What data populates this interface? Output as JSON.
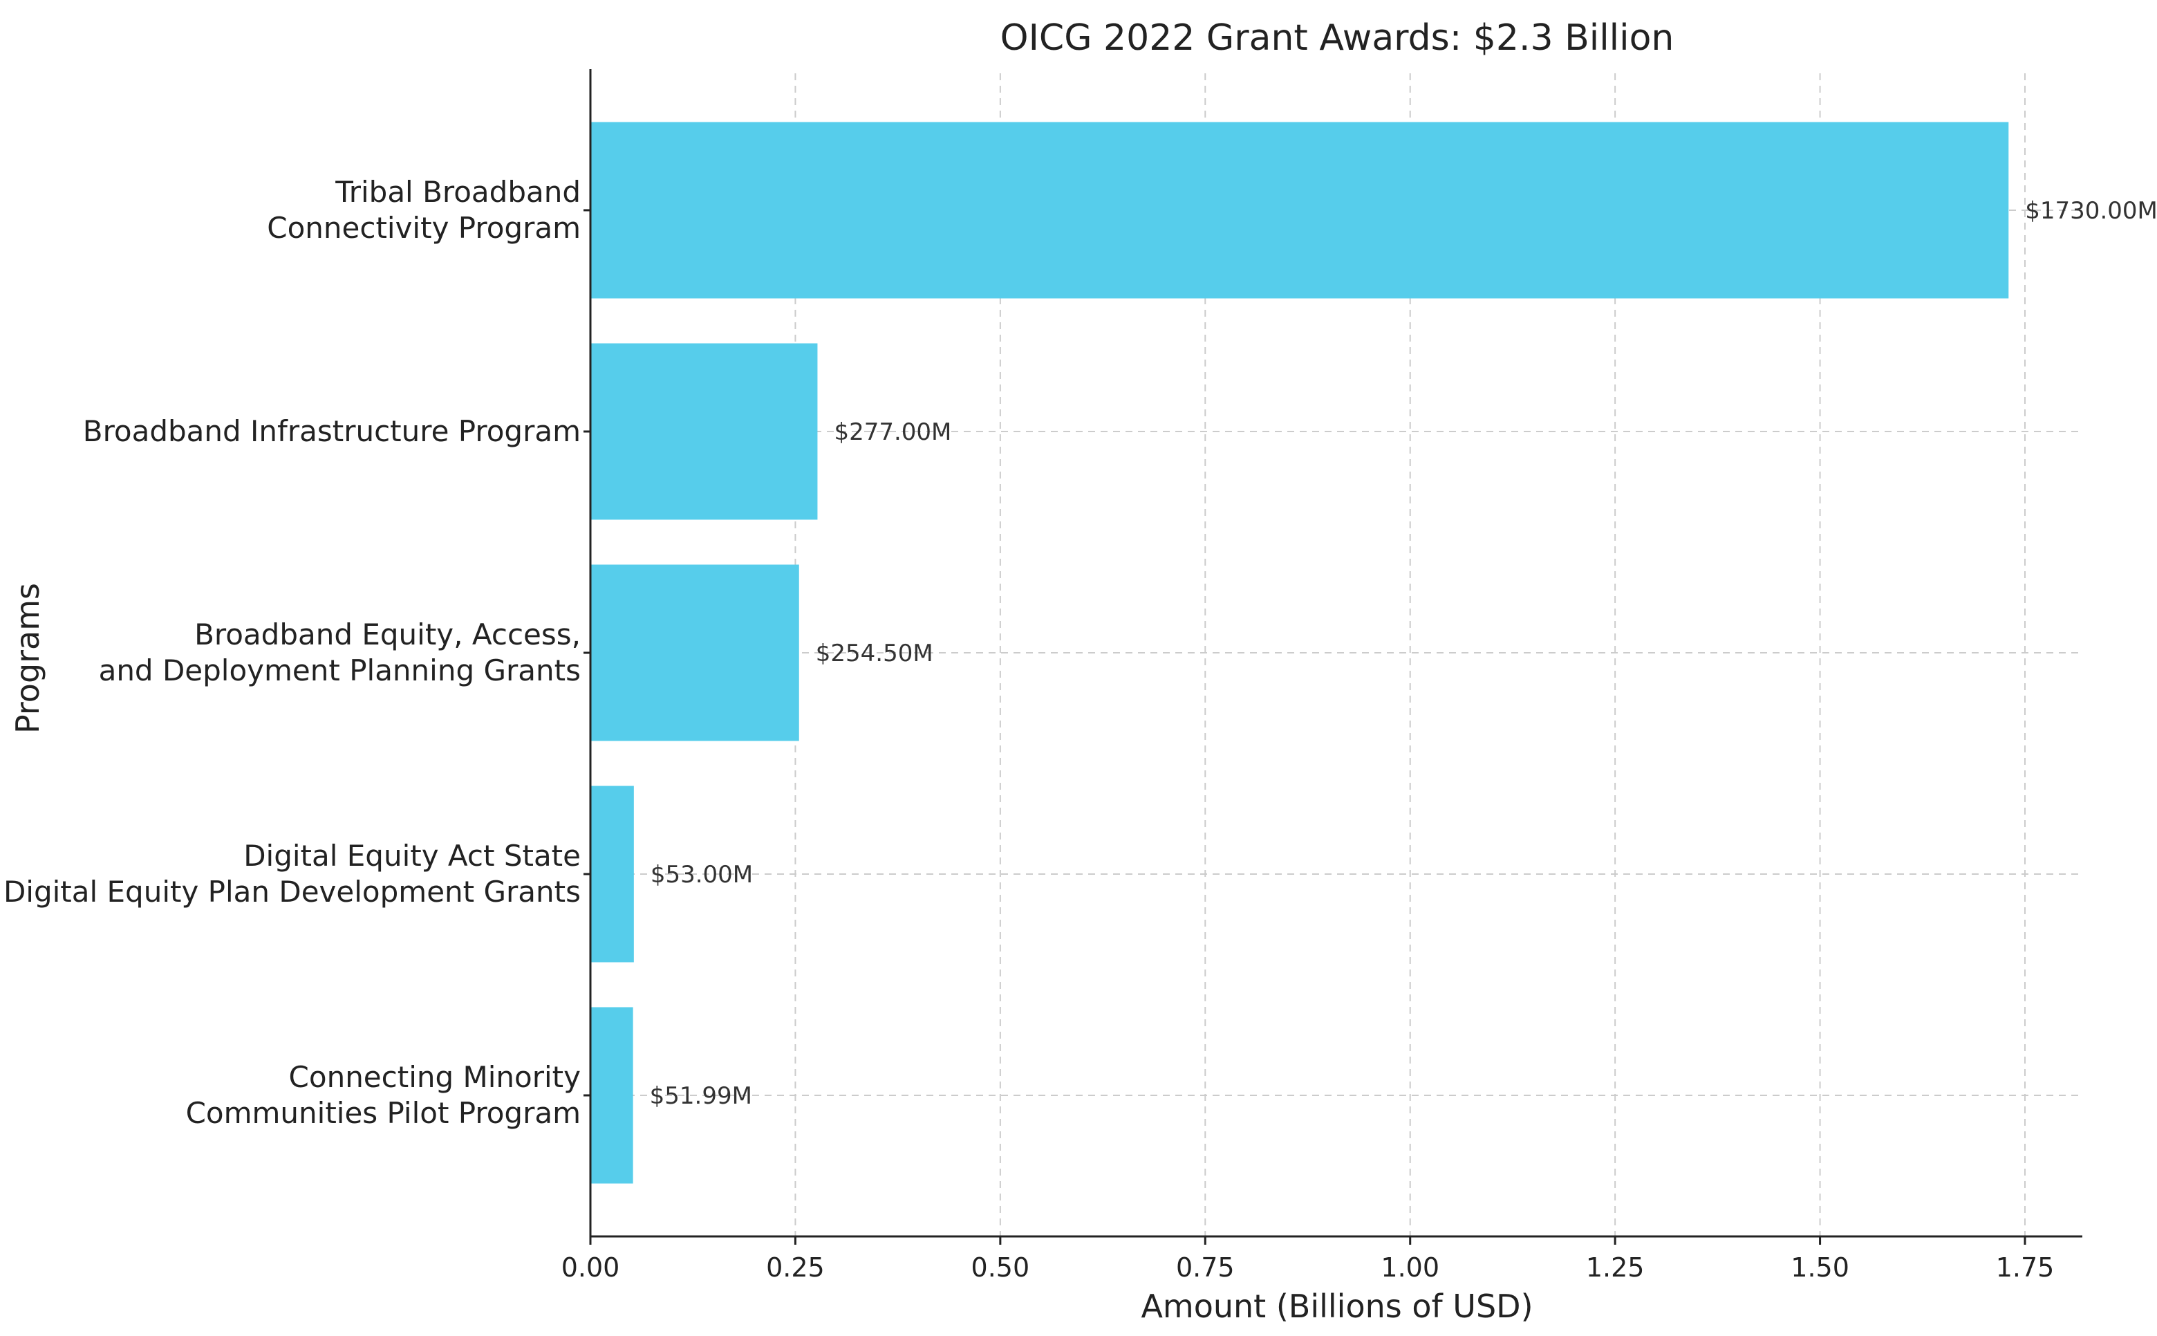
{
  "chart_data": {
    "type": "bar",
    "orientation": "horizontal",
    "title": "OICG 2022 Grant Awards: $2.3 Billion",
    "xlabel": "Amount (Billions of USD)",
    "ylabel": "Programs",
    "categories": [
      [
        "Tribal Broadband",
        "Connectivity Program"
      ],
      [
        "Broadband Infrastructure Program"
      ],
      [
        "Broadband Equity, Access,",
        "and Deployment Planning Grants"
      ],
      [
        "Digital Equity Act State",
        "Digital Equity Plan Development Grants"
      ],
      [
        "Connecting Minority",
        "Communities Pilot Program"
      ]
    ],
    "values": [
      1.73,
      0.277,
      0.2545,
      0.053,
      0.05199
    ],
    "data_labels": [
      "$1730.00M",
      "$277.00M",
      "$254.50M",
      "$53.00M",
      "$51.99M"
    ],
    "xlim": [
      0,
      1.82
    ],
    "xticks": [
      0,
      0.25,
      0.5,
      0.75,
      1.0,
      1.25,
      1.5,
      1.75
    ],
    "xtick_labels": [
      "0.00",
      "0.25",
      "0.50",
      "0.75",
      "1.00",
      "1.25",
      "1.50",
      "1.75"
    ],
    "grid": true,
    "bar_color": "#56CDEB"
  }
}
